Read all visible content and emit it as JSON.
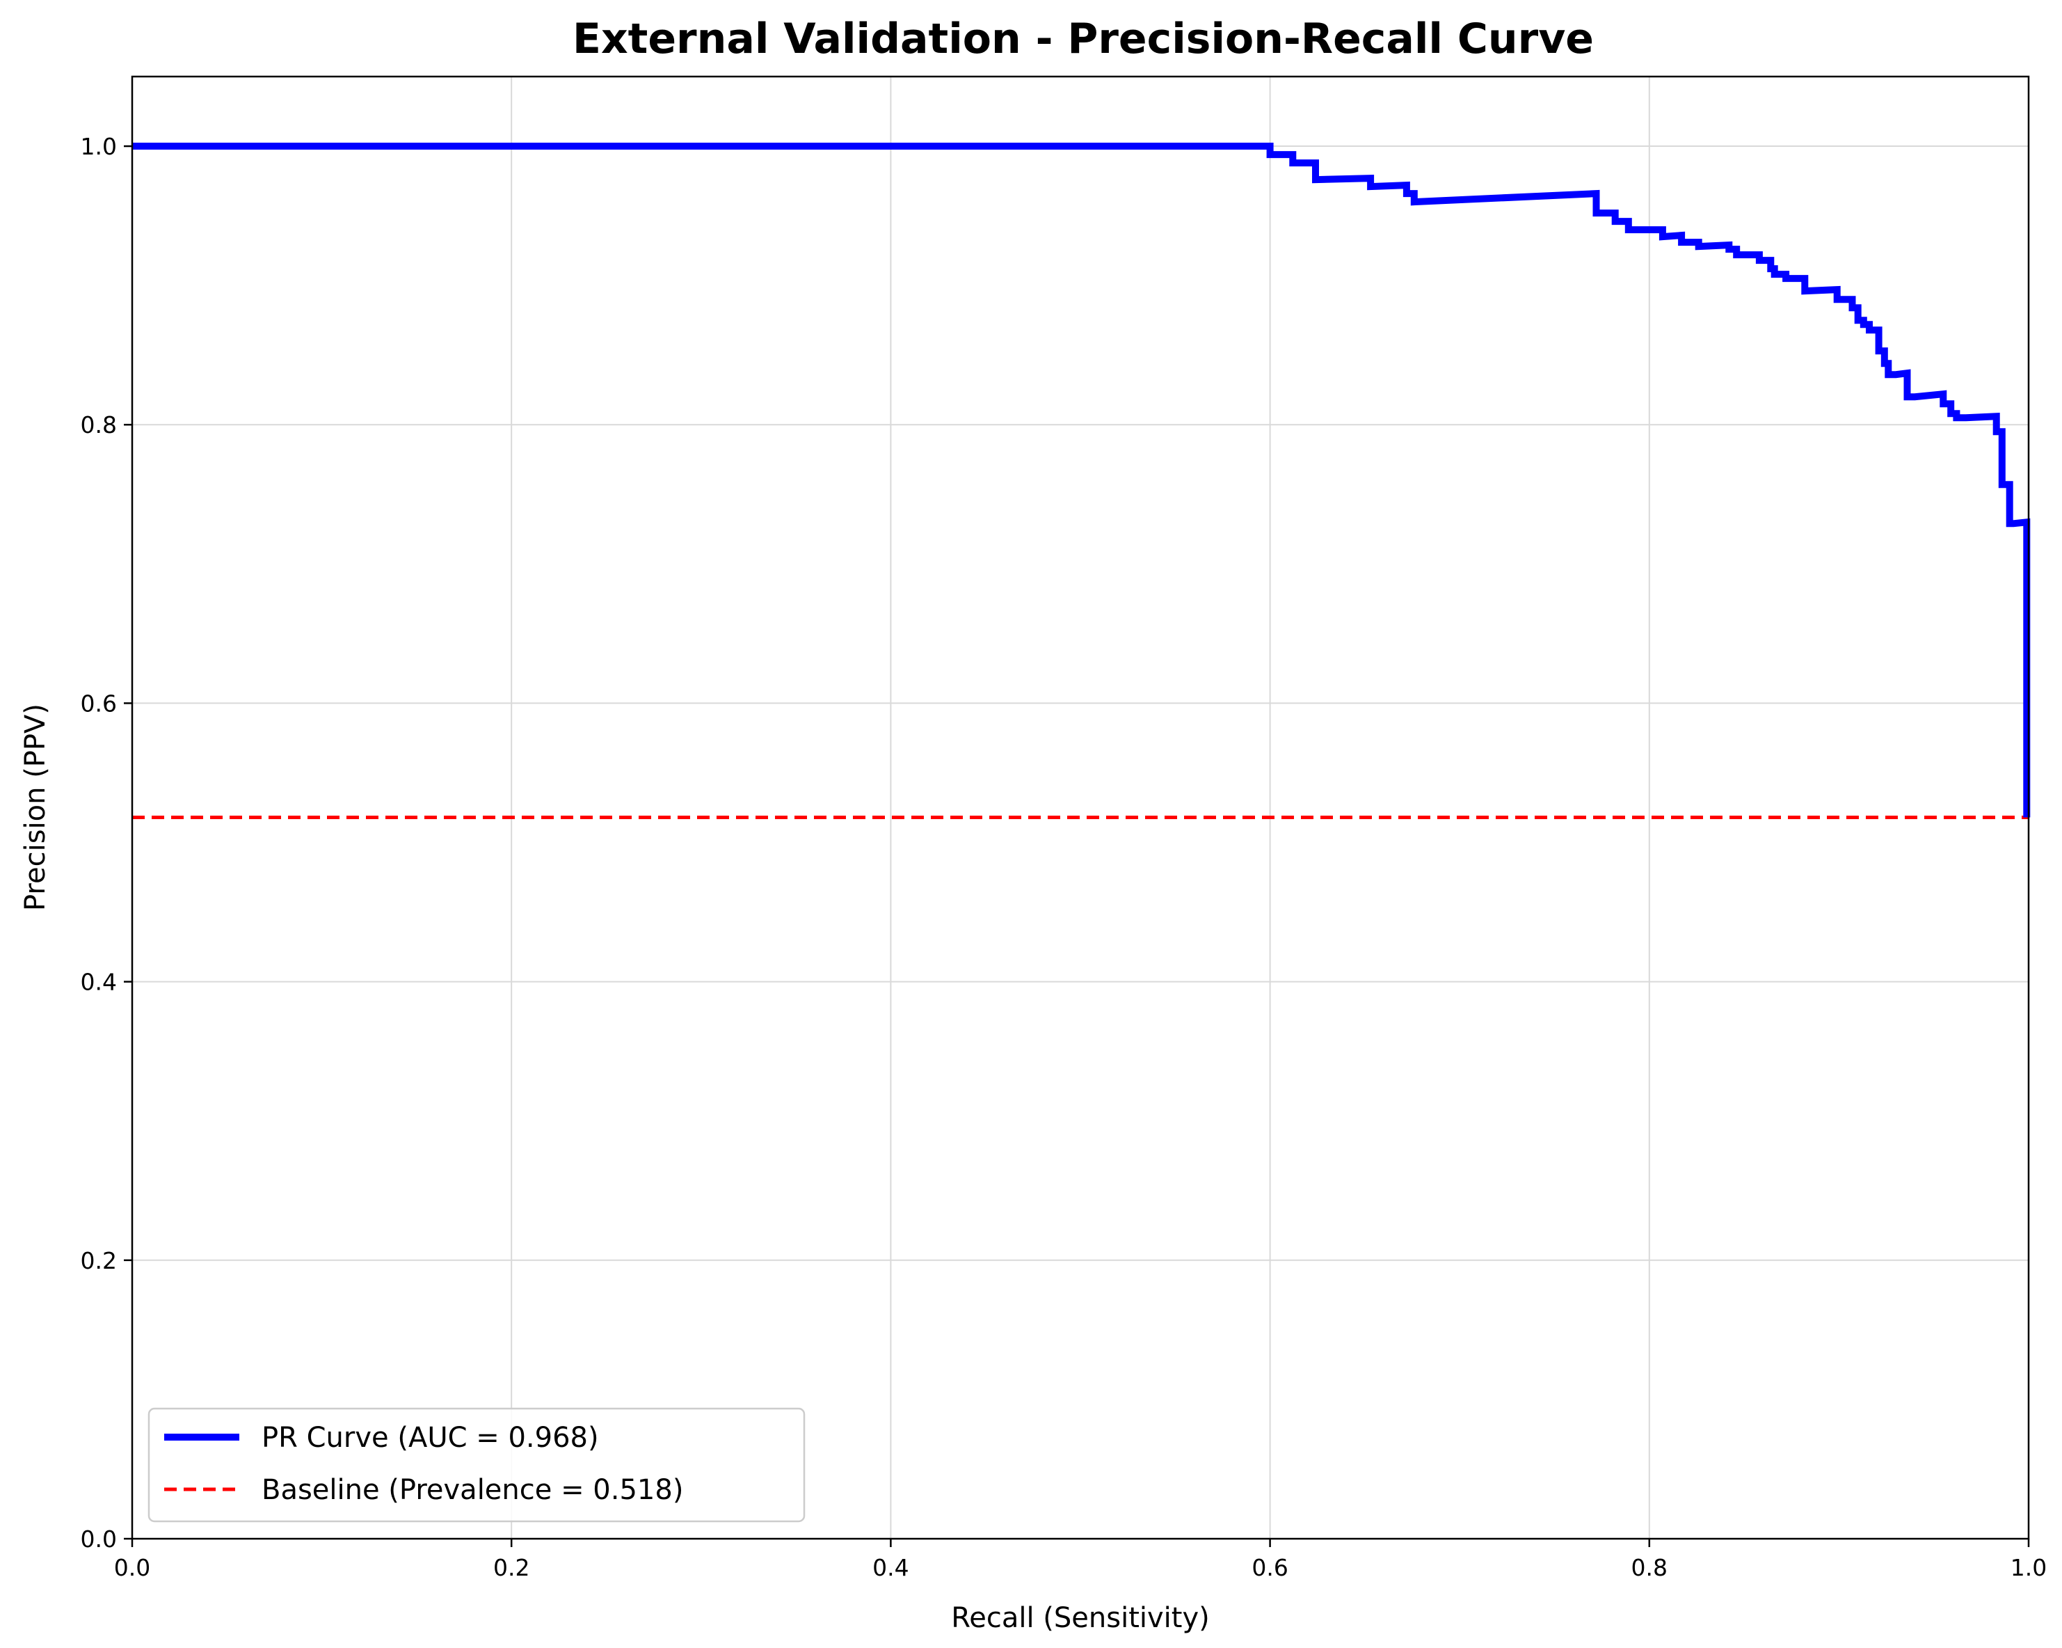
{
  "chart_data": {
    "type": "line",
    "title": "External Validation - Precision-Recall Curve",
    "xlabel": "Recall (Sensitivity)",
    "ylabel": "Precision (PPV)",
    "xlim": [
      0.0,
      1.0
    ],
    "ylim": [
      0.0,
      1.05
    ],
    "xticks": [
      "0.0",
      "0.2",
      "0.4",
      "0.6",
      "0.8",
      "1.0"
    ],
    "yticks": [
      "0.0",
      "0.2",
      "0.4",
      "0.6",
      "0.8",
      "1.0"
    ],
    "grid": true,
    "legend_position": "lower-left",
    "series": [
      {
        "name": "PR Curve (AUC = 0.968)",
        "color": "#0000ff",
        "style": "solid-step",
        "x": [
          0.0,
          0.6,
          0.6,
          0.612,
          0.612,
          0.624,
          0.624,
          0.653,
          0.653,
          0.672,
          0.672,
          0.676,
          0.676,
          0.772,
          0.772,
          0.774,
          0.774,
          0.782,
          0.782,
          0.789,
          0.789,
          0.794,
          0.794,
          0.807,
          0.807,
          0.817,
          0.817,
          0.826,
          0.826,
          0.842,
          0.842,
          0.846,
          0.846,
          0.858,
          0.858,
          0.864,
          0.864,
          0.866,
          0.866,
          0.872,
          0.872,
          0.879,
          0.879,
          0.882,
          0.882,
          0.899,
          0.899,
          0.907,
          0.907,
          0.91,
          0.91,
          0.913,
          0.913,
          0.916,
          0.916,
          0.921,
          0.921,
          0.924,
          0.924,
          0.926,
          0.926,
          0.93,
          0.93,
          0.936,
          0.936,
          0.94,
          0.94,
          0.955,
          0.955,
          0.959,
          0.959,
          0.962,
          0.962,
          0.967,
          0.967,
          0.983,
          0.983,
          0.986,
          0.986,
          0.99,
          0.99,
          0.992,
          0.992,
          0.999,
          0.999
        ],
        "y": [
          1.0,
          1.0,
          0.994,
          0.994,
          0.988,
          0.988,
          0.976,
          0.977,
          0.971,
          0.972,
          0.966,
          0.966,
          0.96,
          0.966,
          0.952,
          0.952,
          0.952,
          0.952,
          0.946,
          0.946,
          0.94,
          0.94,
          0.94,
          0.94,
          0.935,
          0.936,
          0.931,
          0.931,
          0.928,
          0.929,
          0.926,
          0.926,
          0.922,
          0.922,
          0.918,
          0.918,
          0.912,
          0.912,
          0.908,
          0.908,
          0.905,
          0.905,
          0.905,
          0.905,
          0.896,
          0.897,
          0.89,
          0.89,
          0.884,
          0.884,
          0.875,
          0.875,
          0.872,
          0.872,
          0.868,
          0.868,
          0.853,
          0.853,
          0.844,
          0.844,
          0.836,
          0.836,
          0.836,
          0.837,
          0.82,
          0.82,
          0.82,
          0.822,
          0.815,
          0.815,
          0.808,
          0.808,
          0.805,
          0.805,
          0.805,
          0.806,
          0.795,
          0.795,
          0.757,
          0.757,
          0.729,
          0.729,
          0.729,
          0.73,
          0.518
        ]
      },
      {
        "name": "Baseline (Prevalence = 0.518)",
        "color": "#ff0000",
        "style": "dashed",
        "x": [
          0.0,
          1.0
        ],
        "y": [
          0.518,
          0.518
        ]
      }
    ]
  }
}
